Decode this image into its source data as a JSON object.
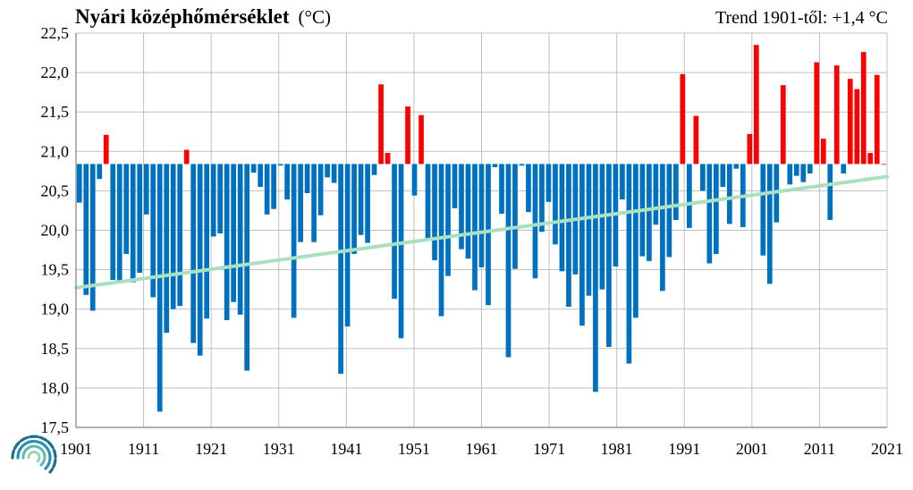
{
  "chart_data": {
    "type": "bar",
    "title": "Nyári középhőmérséklet",
    "title_unit": "(°C)",
    "annotation": "Trend 1901-től: +1,4 °C",
    "baseline": 20.84,
    "ylim": [
      17.5,
      22.5
    ],
    "y_ticks": [
      "17,5",
      "18,0",
      "18,5",
      "19,0",
      "19,5",
      "20,0",
      "20,5",
      "21,0",
      "21,5",
      "22,0",
      "22,5"
    ],
    "x_ticks": [
      "1901",
      "1911",
      "1921",
      "1931",
      "1941",
      "1951",
      "1961",
      "1971",
      "1981",
      "1991",
      "2001",
      "2011",
      "2021"
    ],
    "grid": true,
    "colors": {
      "above": "#ff0000",
      "below": "#0070c0",
      "trend": "#a8e0c0",
      "grid": "#bfbfbf",
      "axis": "#808080"
    },
    "trend": {
      "start_year": 1901,
      "start_value": 19.27,
      "end_year": 2021,
      "end_value": 20.68
    },
    "years": [
      1901,
      1902,
      1903,
      1904,
      1905,
      1906,
      1907,
      1908,
      1909,
      1910,
      1911,
      1912,
      1913,
      1914,
      1915,
      1916,
      1917,
      1918,
      1919,
      1920,
      1921,
      1922,
      1923,
      1924,
      1925,
      1926,
      1927,
      1928,
      1929,
      1930,
      1931,
      1932,
      1933,
      1934,
      1935,
      1936,
      1937,
      1938,
      1939,
      1940,
      1941,
      1942,
      1943,
      1944,
      1945,
      1946,
      1947,
      1948,
      1949,
      1950,
      1951,
      1952,
      1953,
      1954,
      1955,
      1956,
      1957,
      1958,
      1959,
      1960,
      1961,
      1962,
      1963,
      1964,
      1965,
      1966,
      1967,
      1968,
      1969,
      1970,
      1971,
      1972,
      1973,
      1974,
      1975,
      1976,
      1977,
      1978,
      1979,
      1980,
      1981,
      1982,
      1983,
      1984,
      1985,
      1986,
      1987,
      1988,
      1989,
      1990,
      1991,
      1992,
      1993,
      1994,
      1995,
      1996,
      1997,
      1998,
      1999,
      2000,
      2001,
      2002,
      2003,
      2004,
      2005,
      2006,
      2007,
      2008,
      2009,
      2010,
      2011,
      2012,
      2013,
      2014,
      2015,
      2016,
      2017,
      2018,
      2019,
      2020,
      2021
    ],
    "values": [
      20.35,
      19.18,
      18.98,
      20.65,
      21.21,
      19.37,
      19.36,
      19.7,
      19.34,
      19.46,
      20.2,
      19.15,
      17.7,
      18.7,
      19.0,
      19.04,
      21.02,
      18.57,
      18.41,
      18.88,
      19.92,
      19.96,
      18.86,
      19.09,
      18.93,
      18.22,
      20.73,
      20.55,
      20.2,
      20.27,
      20.82,
      20.39,
      18.89,
      19.85,
      20.47,
      19.85,
      20.19,
      20.67,
      20.6,
      18.18,
      18.78,
      19.7,
      19.94,
      19.84,
      20.7,
      21.85,
      20.98,
      19.13,
      18.63,
      21.57,
      20.44,
      21.46,
      19.88,
      19.62,
      18.91,
      19.42,
      20.28,
      19.76,
      19.64,
      19.24,
      19.53,
      19.05,
      20.8,
      20.21,
      18.39,
      19.51,
      20.82,
      20.23,
      19.39,
      19.98,
      20.36,
      19.82,
      19.48,
      19.03,
      19.44,
      18.79,
      19.17,
      17.95,
      19.25,
      18.52,
      19.54,
      20.39,
      18.31,
      18.89,
      19.67,
      19.61,
      20.07,
      19.23,
      19.66,
      20.13,
      21.98,
      20.03,
      21.45,
      20.5,
      19.58,
      19.7,
      20.55,
      20.08,
      20.78,
      20.04,
      21.22,
      22.35,
      19.68,
      19.32,
      20.1,
      21.84,
      20.58,
      20.69,
      20.61,
      20.72,
      22.13,
      21.16,
      20.13,
      22.09,
      20.72,
      21.92,
      21.79,
      22.26,
      20.98,
      21.97,
      20.84
    ]
  }
}
